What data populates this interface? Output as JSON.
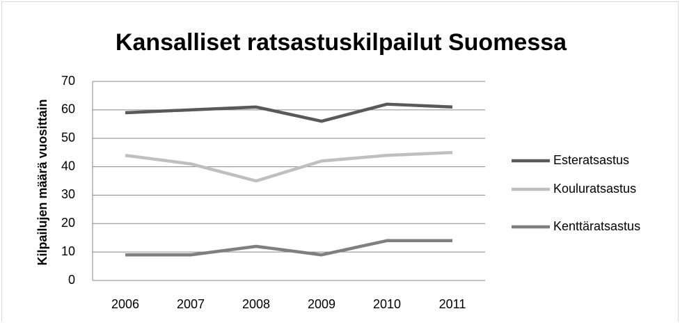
{
  "chart_data": {
    "type": "line",
    "title": "Kansalliset ratsastuskilpailut Suomessa",
    "y_label": "Kilpailujen määrä vuosittain",
    "categories": [
      "2006",
      "2007",
      "2008",
      "2009",
      "2010",
      "2011"
    ],
    "series": [
      {
        "name": "Esteratsastus",
        "color": "#595959",
        "values": [
          59,
          60,
          61,
          56,
          62,
          61
        ]
      },
      {
        "name": "Kouluratsastus",
        "color": "#bfbfbf",
        "values": [
          44,
          41,
          35,
          42,
          44,
          45
        ]
      },
      {
        "name": "Kenttäratsastus",
        "color": "#7f7f7f",
        "values": [
          9,
          9,
          12,
          9,
          14,
          14
        ]
      }
    ],
    "ylim": [
      0,
      70
    ],
    "yticks": [
      0,
      10,
      20,
      30,
      40,
      50,
      60,
      70
    ],
    "grid": true,
    "legend": "right"
  }
}
